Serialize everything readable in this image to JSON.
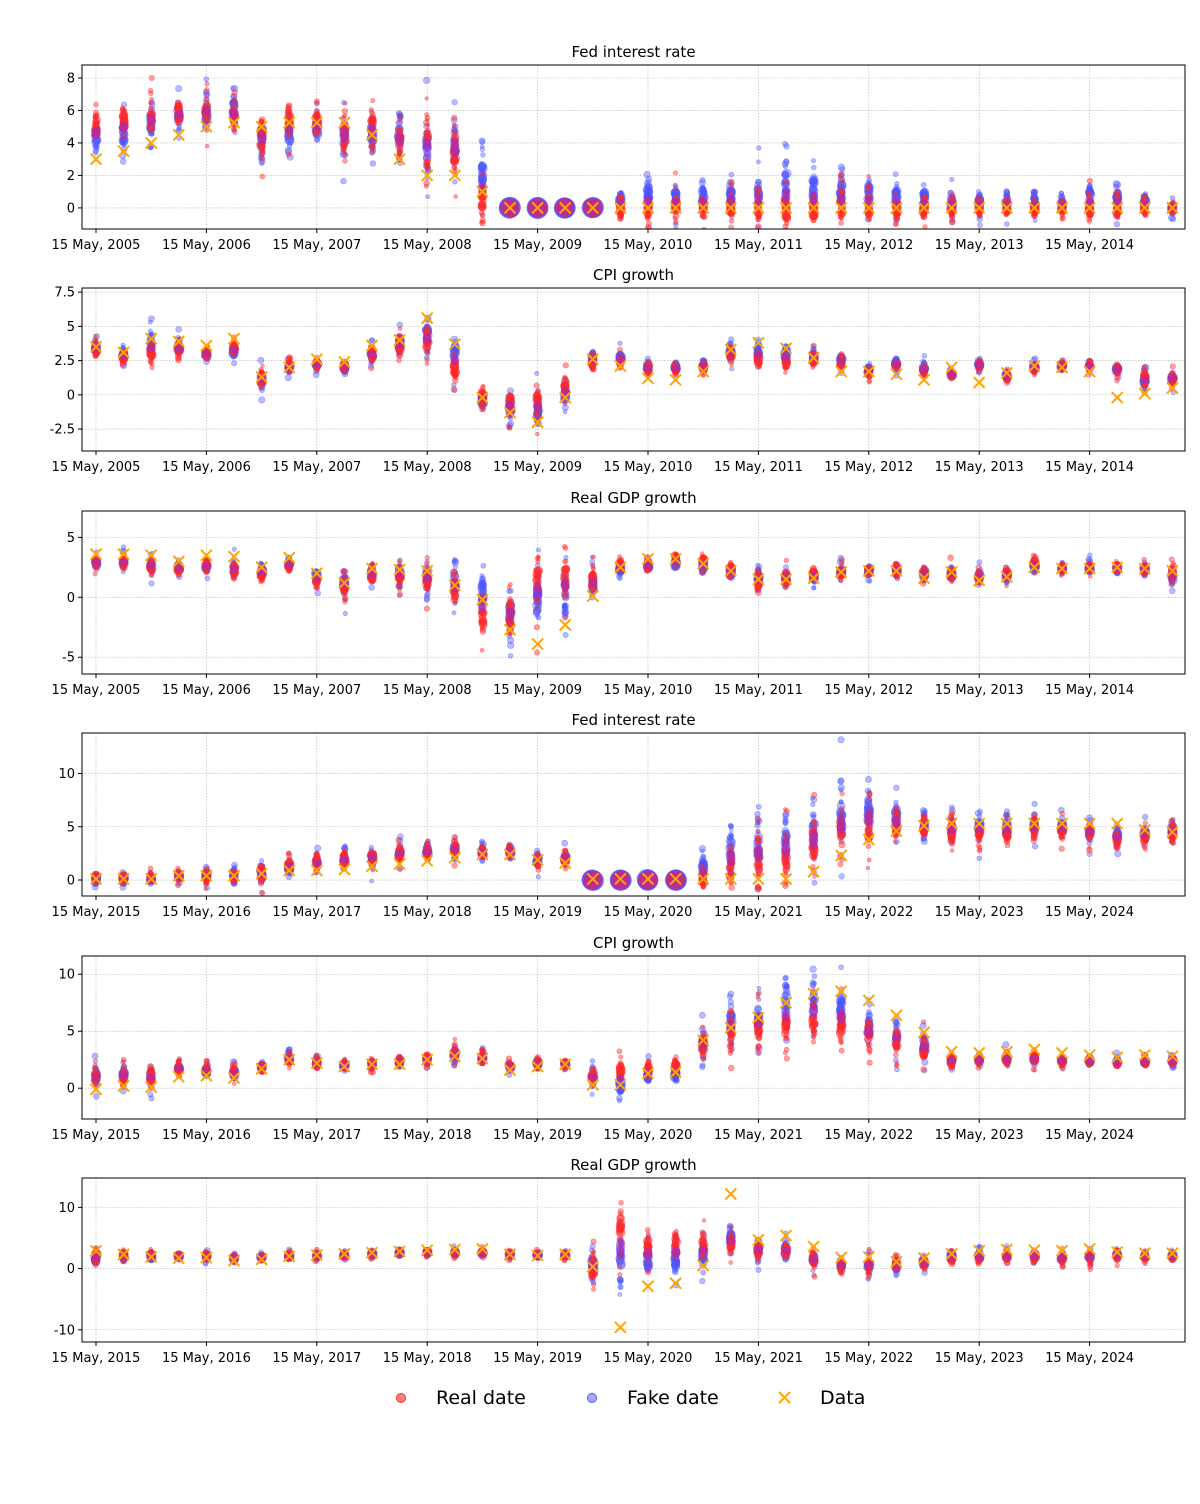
{
  "colors": {
    "real": "#ff2a2a",
    "fake": "#4b55ff",
    "data": "#ffa500",
    "overlap": "#8a2be2"
  },
  "legend": {
    "real": "Real date",
    "fake": "Fake date",
    "data": "Data"
  },
  "chart_data": [
    {
      "type": "scatter",
      "title": "Fed interest rate",
      "ylim": [
        -1.3,
        8.8
      ],
      "yticks": [
        0,
        2,
        4,
        6,
        8
      ],
      "tick_labels": [
        "15 May, 2005",
        "15 May, 2006",
        "15 May, 2007",
        "15 May, 2008",
        "15 May, 2009",
        "15 May, 2010",
        "15 May, 2011",
        "15 May, 2012",
        "15 May, 2013",
        "15 May, 2014"
      ],
      "data": [
        3.0,
        3.5,
        4.0,
        4.5,
        5.0,
        5.25,
        5.0,
        5.25,
        5.25,
        5.25,
        4.5,
        3.0,
        2.0,
        2.0,
        1.0,
        0.0,
        0.0,
        0.0,
        0.0,
        0.0,
        0.0,
        0.0,
        0.0,
        0.0,
        0.0,
        0.0,
        0.0,
        0.0,
        0.0,
        0.0,
        0.0,
        0.0,
        0.0,
        0.0,
        0.0,
        0.0,
        0.0,
        0.0,
        0.0,
        0.0
      ],
      "real_center": [
        5.0,
        5.4,
        5.6,
        5.9,
        6.0,
        5.6,
        4.3,
        5.2,
        5.2,
        4.5,
        4.9,
        4.1,
        3.6,
        3.6,
        0.4,
        0.0,
        0.0,
        0.0,
        0.0,
        0.0,
        0.0,
        0.1,
        0.0,
        0.0,
        0.0,
        0.0,
        0.0,
        0.0,
        0.0,
        0.0,
        0.0,
        0.0,
        0.0,
        0.0,
        0.0,
        0.0,
        0.0,
        0.0,
        0.0,
        0.0
      ],
      "fake_center": [
        4.3,
        4.5,
        5.2,
        5.6,
        5.9,
        6.0,
        4.3,
        4.6,
        4.9,
        4.5,
        4.6,
        4.3,
        3.8,
        3.8,
        2.1,
        0.0,
        0.0,
        0.0,
        0.0,
        0.5,
        0.9,
        0.7,
        0.7,
        0.9,
        1.0,
        1.5,
        1.2,
        1.0,
        0.9,
        0.7,
        0.6,
        0.4,
        0.4,
        0.4,
        0.4,
        0.3,
        0.7,
        0.8,
        0.4,
        0.0
      ],
      "spread": [
        1.0,
        1.0,
        1.0,
        0.8,
        0.9,
        1.0,
        1.2,
        1.0,
        0.9,
        1.4,
        1.2,
        1.2,
        1.6,
        1.6,
        1.2,
        0.05,
        0.05,
        0.05,
        0.05,
        0.7,
        0.9,
        0.8,
        0.8,
        0.9,
        1.0,
        1.3,
        1.1,
        1.0,
        0.9,
        0.8,
        0.7,
        0.6,
        0.5,
        0.5,
        0.5,
        0.4,
        0.7,
        0.7,
        0.5,
        0.3
      ]
    },
    {
      "type": "scatter",
      "title": "CPI growth",
      "ylim": [
        -4.1,
        7.8
      ],
      "yticks": [
        -2.5,
        0.0,
        2.5,
        5.0,
        7.5
      ],
      "tick_labels": [
        "15 May, 2005",
        "15 May, 2006",
        "15 May, 2007",
        "15 May, 2008",
        "15 May, 2009",
        "15 May, 2010",
        "15 May, 2011",
        "15 May, 2012",
        "15 May, 2013",
        "15 May, 2014"
      ],
      "data": [
        3.5,
        3.1,
        4.1,
        3.9,
        3.6,
        4.1,
        1.3,
        2.0,
        2.6,
        2.4,
        3.6,
        4.0,
        5.6,
        3.7,
        -0.2,
        -1.3,
        -2.0,
        -0.2,
        2.6,
        2.1,
        1.2,
        1.1,
        1.7,
        3.3,
        3.8,
        3.4,
        2.7,
        1.7,
        1.7,
        1.5,
        1.1,
        2.0,
        0.9,
        1.6,
        2.1,
        2.0,
        1.7,
        -0.2,
        0.1,
        0.5
      ],
      "real_center": [
        3.3,
        2.8,
        3.1,
        3.2,
        3.0,
        3.4,
        1.2,
        2.1,
        2.3,
        2.1,
        3.0,
        3.6,
        3.8,
        2.0,
        -0.1,
        -0.6,
        -0.5,
        0.6,
        2.4,
        2.5,
        1.9,
        1.9,
        2.0,
        3.0,
        2.6,
        2.4,
        2.6,
        2.4,
        1.7,
        2.2,
        1.8,
        1.5,
        2.1,
        1.3,
        1.9,
        2.1,
        2.1,
        1.8,
        1.2,
        1.2
      ],
      "fake_center": [
        3.4,
        2.9,
        3.7,
        3.5,
        3.0,
        3.2,
        1.1,
        2.0,
        2.2,
        2.0,
        2.9,
        3.7,
        4.4,
        3.1,
        -0.3,
        -0.9,
        -1.2,
        -0.1,
        2.6,
        2.7,
        2.0,
        2.0,
        2.1,
        3.1,
        3.2,
        3.0,
        2.8,
        2.5,
        1.8,
        2.3,
        1.9,
        1.5,
        2.2,
        1.4,
        2.0,
        2.1,
        2.1,
        1.9,
        1.0,
        1.2
      ],
      "spread": [
        0.45,
        0.45,
        0.7,
        0.5,
        0.35,
        0.45,
        0.6,
        0.35,
        0.3,
        0.35,
        0.5,
        0.8,
        1.1,
        1.0,
        0.8,
        1.0,
        1.1,
        0.8,
        0.45,
        0.4,
        0.45,
        0.35,
        0.35,
        0.6,
        0.6,
        0.55,
        0.5,
        0.45,
        0.35,
        0.3,
        0.35,
        0.3,
        0.3,
        0.35,
        0.3,
        0.3,
        0.3,
        0.35,
        0.55,
        0.4
      ]
    },
    {
      "type": "scatter",
      "title": "Real GDP growth",
      "ylim": [
        -6.4,
        7.2
      ],
      "yticks": [
        -5,
        0,
        5
      ],
      "tick_labels": [
        "15 May, 2005",
        "15 May, 2006",
        "15 May, 2007",
        "15 May, 2008",
        "15 May, 2009",
        "15 May, 2010",
        "15 May, 2011",
        "15 May, 2012",
        "15 May, 2013",
        "15 May, 2014"
      ],
      "data": [
        3.6,
        3.6,
        3.5,
        3.0,
        3.5,
        3.4,
        2.5,
        3.3,
        2.0,
        1.2,
        2.4,
        2.3,
        2.2,
        1.0,
        -0.2,
        -2.7,
        -3.9,
        -2.3,
        0.1,
        2.5,
        3.2,
        3.2,
        2.8,
        2.2,
        1.5,
        1.5,
        1.6,
        2.1,
        2.2,
        2.2,
        1.6,
        2.1,
        1.4,
        1.7,
        2.5,
        2.4,
        2.4,
        2.5,
        2.4,
        2.2
      ],
      "real_center": [
        3.0,
        2.9,
        2.6,
        2.4,
        2.6,
        2.3,
        2.0,
        2.7,
        1.4,
        1.0,
        1.8,
        1.9,
        1.3,
        0.5,
        -1.6,
        -1.5,
        1.2,
        1.7,
        1.4,
        2.7,
        2.7,
        3.2,
        3.0,
        2.2,
        1.3,
        1.7,
        1.9,
        2.1,
        2.2,
        2.3,
        2.0,
        1.9,
        1.6,
        1.9,
        2.9,
        2.4,
        2.5,
        2.5,
        2.4,
        2.0
      ],
      "fake_center": [
        2.9,
        2.9,
        2.7,
        2.5,
        2.6,
        2.4,
        2.2,
        2.8,
        1.8,
        1.2,
        2.0,
        2.0,
        1.9,
        1.3,
        0.3,
        -1.4,
        -0.2,
        0.3,
        1.1,
        2.3,
        2.6,
        2.8,
        2.6,
        2.1,
        1.7,
        1.6,
        1.8,
        2.1,
        2.2,
        2.3,
        2.0,
        1.9,
        1.7,
        1.8,
        2.6,
        2.4,
        2.4,
        2.4,
        2.3,
        1.7
      ],
      "spread": [
        0.45,
        0.45,
        0.55,
        0.45,
        0.55,
        0.6,
        0.55,
        0.4,
        0.6,
        0.9,
        0.7,
        0.9,
        1.2,
        1.5,
        1.7,
        1.8,
        2.2,
        1.6,
        1.1,
        0.45,
        0.45,
        0.5,
        0.5,
        0.6,
        0.7,
        0.7,
        0.55,
        0.5,
        0.45,
        0.45,
        0.5,
        0.5,
        0.5,
        0.5,
        0.4,
        0.35,
        0.4,
        0.4,
        0.4,
        0.65
      ]
    },
    {
      "type": "scatter",
      "title": "Fed interest rate",
      "ylim": [
        -1.5,
        13.8
      ],
      "yticks": [
        0,
        5,
        10
      ],
      "tick_labels": [
        "15 May, 2015",
        "15 May, 2016",
        "15 May, 2017",
        "15 May, 2018",
        "15 May, 2019",
        "15 May, 2020",
        "15 May, 2021",
        "15 May, 2022",
        "15 May, 2023",
        "15 May, 2024"
      ],
      "data": [
        0.1,
        0.1,
        0.1,
        0.4,
        0.4,
        0.4,
        0.6,
        0.9,
        0.9,
        1.0,
        1.3,
        1.5,
        1.8,
        2.1,
        2.4,
        2.4,
        1.9,
        1.6,
        0.1,
        0.1,
        0.1,
        0.1,
        0.1,
        0.1,
        0.1,
        0.1,
        0.8,
        2.3,
        3.8,
        4.6,
        5.1,
        5.3,
        5.3,
        5.3,
        5.3,
        5.3,
        5.3,
        5.3,
        4.7,
        4.5
      ],
      "real_center": [
        0.2,
        0.2,
        0.2,
        0.4,
        0.4,
        0.4,
        0.7,
        1.3,
        1.6,
        2.0,
        2.1,
        2.6,
        2.6,
        2.9,
        2.6,
        2.7,
        1.8,
        2.0,
        0.0,
        0.0,
        0.0,
        0.0,
        0.2,
        1.3,
        1.8,
        2.2,
        3.5,
        4.3,
        5.0,
        5.2,
        5.0,
        4.6,
        4.6,
        4.5,
        4.8,
        4.7,
        4.4,
        3.9,
        4.2,
        4.5
      ],
      "fake_center": [
        0.1,
        0.1,
        0.1,
        0.4,
        0.4,
        0.4,
        0.6,
        1.3,
        1.6,
        1.9,
        2.1,
        2.5,
        2.7,
        2.9,
        2.6,
        2.7,
        1.9,
        2.1,
        0.0,
        0.0,
        0.0,
        0.0,
        1.2,
        2.8,
        3.2,
        3.8,
        4.1,
        6.0,
        6.5,
        5.8,
        5.1,
        4.8,
        5.0,
        4.9,
        5.1,
        5.0,
        4.6,
        4.1,
        4.4,
        4.6
      ],
      "spread": [
        0.4,
        0.4,
        0.4,
        0.5,
        0.6,
        0.6,
        0.8,
        0.7,
        0.7,
        0.7,
        0.8,
        0.8,
        0.7,
        0.7,
        0.6,
        0.6,
        0.6,
        0.6,
        0.05,
        0.05,
        0.05,
        0.05,
        1.0,
        2.2,
        2.4,
        2.4,
        2.6,
        2.6,
        2.2,
        1.6,
        1.2,
        1.1,
        1.0,
        1.1,
        1.0,
        0.9,
        0.9,
        0.8,
        0.9,
        0.9
      ]
    },
    {
      "type": "scatter",
      "title": "CPI growth",
      "ylim": [
        -2.7,
        11.6
      ],
      "yticks": [
        0,
        5,
        10
      ],
      "tick_labels": [
        "15 May, 2015",
        "15 May, 2016",
        "15 May, 2017",
        "15 May, 2018",
        "15 May, 2019",
        "15 May, 2020",
        "15 May, 2021",
        "15 May, 2022",
        "15 May, 2023",
        "15 May, 2024"
      ],
      "data": [
        -0.1,
        0.2,
        0.1,
        1.0,
        1.1,
        0.9,
        1.7,
        2.5,
        2.2,
        1.9,
        2.1,
        2.1,
        2.5,
        2.8,
        2.6,
        1.6,
        1.9,
        2.1,
        0.3,
        0.3,
        1.3,
        1.4,
        4.2,
        5.3,
        6.2,
        7.5,
        8.3,
        8.5,
        7.7,
        6.4,
        4.9,
        3.2,
        3.1,
        3.2,
        3.4,
        3.1,
        2.9,
        2.7,
        2.9,
        2.8
      ],
      "real_center": [
        1.0,
        1.1,
        1.1,
        1.8,
        1.6,
        1.4,
        1.8,
        2.5,
        2.2,
        2.0,
        2.1,
        2.3,
        2.6,
        3.0,
        2.6,
        1.9,
        2.2,
        2.1,
        1.1,
        1.5,
        1.7,
        1.9,
        3.8,
        4.9,
        5.4,
        5.5,
        6.1,
        5.6,
        4.6,
        4.2,
        3.4,
        2.4,
        2.5,
        2.5,
        2.6,
        2.4,
        2.4,
        2.2,
        2.3,
        2.4
      ],
      "fake_center": [
        1.0,
        1.1,
        0.9,
        1.7,
        1.5,
        1.3,
        1.9,
        2.7,
        2.2,
        2.0,
        2.1,
        2.3,
        2.5,
        3.0,
        2.6,
        1.9,
        2.2,
        2.1,
        0.9,
        0.2,
        1.1,
        1.2,
        3.9,
        5.9,
        6.2,
        7.4,
        7.6,
        7.0,
        5.3,
        4.7,
        3.7,
        2.5,
        2.5,
        2.6,
        2.6,
        2.5,
        2.4,
        2.3,
        2.3,
        2.4
      ],
      "spread": [
        0.8,
        0.7,
        0.8,
        0.5,
        0.5,
        0.6,
        0.4,
        0.45,
        0.4,
        0.3,
        0.35,
        0.4,
        0.5,
        0.55,
        0.5,
        0.35,
        0.4,
        0.3,
        0.7,
        0.9,
        0.6,
        0.6,
        1.0,
        1.6,
        1.6,
        1.6,
        1.8,
        1.9,
        1.6,
        1.2,
        1.1,
        0.5,
        0.45,
        0.45,
        0.45,
        0.4,
        0.35,
        0.35,
        0.35,
        0.4
      ]
    },
    {
      "type": "scatter",
      "title": "Real GDP growth",
      "ylim": [
        -12.0,
        14.8
      ],
      "yticks": [
        -10,
        0,
        10
      ],
      "tick_labels": [
        "15 May, 2015",
        "15 May, 2016",
        "15 May, 2017",
        "15 May, 2018",
        "15 May, 2019",
        "15 May, 2020",
        "15 May, 2021",
        "15 May, 2022",
        "15 May, 2023",
        "15 May, 2024"
      ],
      "data": [
        2.9,
        2.3,
        1.9,
        1.7,
        1.8,
        1.3,
        1.5,
        2.0,
        2.2,
        2.4,
        2.6,
        2.8,
        3.0,
        3.1,
        3.2,
        2.3,
        2.1,
        2.3,
        0.3,
        -9.6,
        -2.9,
        -2.4,
        0.5,
        12.2,
        4.7,
        5.4,
        3.6,
        1.8,
        1.9,
        1.1,
        1.7,
        2.4,
        2.9,
        3.1,
        3.0,
        2.9,
        3.2,
        2.7,
        2.5,
        2.5
      ],
      "real_center": [
        2.0,
        2.2,
        2.2,
        2.0,
        2.0,
        1.7,
        1.8,
        2.0,
        2.1,
        2.2,
        2.4,
        2.6,
        2.7,
        2.6,
        2.6,
        2.3,
        2.2,
        2.2,
        0.0,
        6.0,
        3.5,
        3.8,
        3.8,
        4.0,
        3.0,
        2.8,
        1.4,
        0.6,
        0.6,
        0.6,
        0.9,
        1.6,
        1.9,
        2.0,
        2.0,
        1.8,
        1.9,
        2.2,
        2.0,
        2.0
      ],
      "fake_center": [
        1.6,
        2.1,
        1.9,
        2.0,
        2.0,
        1.7,
        1.9,
        2.0,
        2.1,
        2.2,
        2.4,
        2.6,
        2.6,
        2.6,
        2.6,
        2.3,
        2.2,
        2.2,
        0.8,
        1.0,
        1.4,
        1.6,
        2.2,
        5.0,
        3.2,
        3.0,
        1.6,
        0.5,
        0.5,
        0.4,
        1.0,
        2.1,
        1.9,
        2.0,
        2.1,
        1.8,
        2.0,
        2.2,
        2.0,
        2.1
      ],
      "spread": [
        1.0,
        0.6,
        0.6,
        0.5,
        0.5,
        0.5,
        0.45,
        0.45,
        0.45,
        0.45,
        0.45,
        0.45,
        0.45,
        0.45,
        0.45,
        0.4,
        0.4,
        0.4,
        2.2,
        4.8,
        2.6,
        2.6,
        2.2,
        1.5,
        1.2,
        1.2,
        1.2,
        1.1,
        1.1,
        1.0,
        0.8,
        0.9,
        0.7,
        0.7,
        0.8,
        0.8,
        0.8,
        0.7,
        0.6,
        0.6
      ]
    }
  ]
}
